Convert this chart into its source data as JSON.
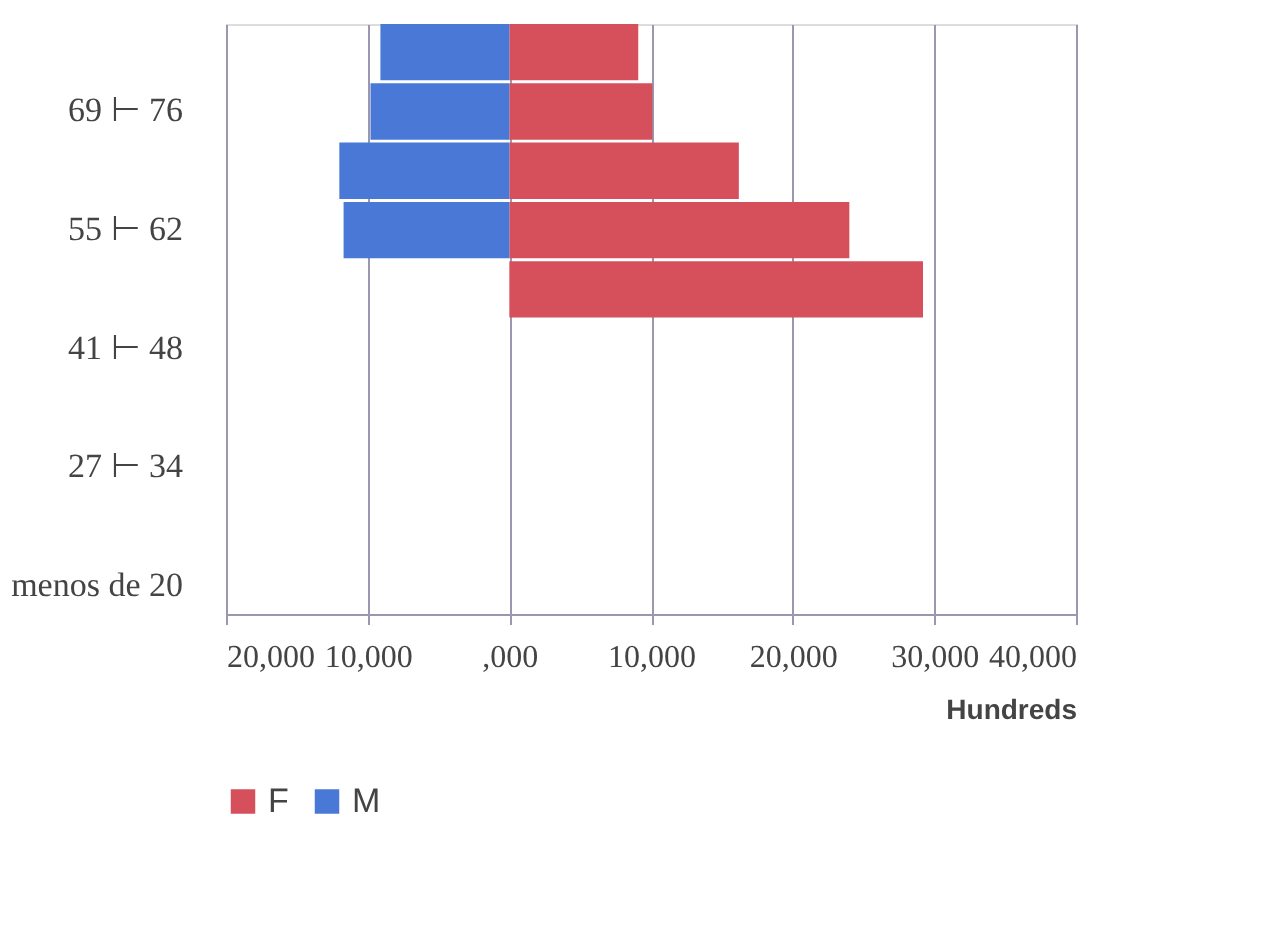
{
  "chart_data": {
    "type": "bar",
    "orientation": "horizontal",
    "categories": [
      null,
      "69 ⊢ 76",
      null,
      "55 ⊢ 62",
      null,
      "41 ⊢ 48",
      null,
      "27 ⊢ 34",
      null,
      "menos de 20"
    ],
    "series": [
      {
        "name": "F",
        "color": "#d6505c",
        "values": [
          9100,
          10100,
          16200,
          24000,
          29200,
          null,
          null,
          null,
          null,
          null
        ]
      },
      {
        "name": "M",
        "color": "#4a78d6",
        "values": [
          -9100,
          -9800,
          -12000,
          -11700,
          null,
          null,
          null,
          null,
          null,
          null
        ]
      }
    ],
    "xlim": [
      -20000,
      40000
    ],
    "xticks": [
      {
        "value": -20000,
        "label": "20,000"
      },
      {
        "value": -10000,
        "label": "10,000"
      },
      {
        "value": 0,
        "label": ",000"
      },
      {
        "value": 10000,
        "label": "10,000"
      },
      {
        "value": 20000,
        "label": "20,000"
      },
      {
        "value": 30000,
        "label": "30,000"
      },
      {
        "value": 40000,
        "label": "40,000"
      }
    ],
    "xlabel": "Hundreds",
    "grid": "x",
    "legend": "bottom"
  }
}
